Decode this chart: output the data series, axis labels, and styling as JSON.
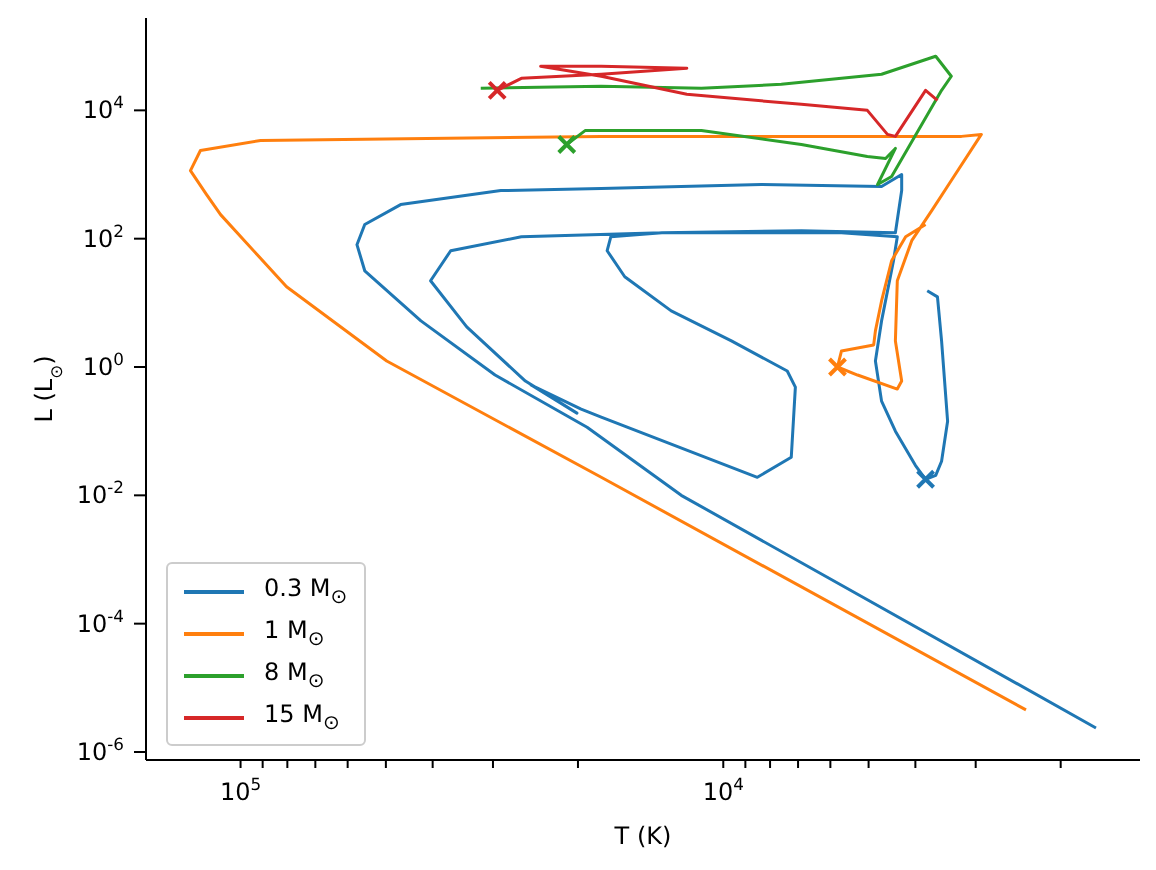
{
  "chart_data": {
    "type": "line",
    "xlabel": "T (K)",
    "ylabel": "L (L$_{⊙}$)",
    "log": "xy",
    "grid": false,
    "legend": "bottom left",
    "xlim": [
      157000,
      1370
    ],
    "ylim": [
      7.5e-07,
      275000
    ],
    "xticks": [
      {
        "value": 100000,
        "label": "10$^{5}$"
      },
      {
        "value": 10000,
        "label": "10$^{4}$"
      },
      {
        "value": 2000,
        "label": null
      },
      {
        "value": 3000,
        "label": null
      },
      {
        "value": 4000,
        "label": null
      },
      {
        "value": 5000,
        "label": null
      },
      {
        "value": 6000,
        "label": null
      },
      {
        "value": 7000,
        "label": null
      },
      {
        "value": 8000,
        "label": null
      },
      {
        "value": 9000,
        "label": null
      },
      {
        "value": 20000,
        "label": null
      },
      {
        "value": 30000,
        "label": null
      },
      {
        "value": 40000,
        "label": null
      },
      {
        "value": 50000,
        "label": null
      },
      {
        "value": 60000,
        "label": null
      },
      {
        "value": 70000,
        "label": null
      },
      {
        "value": 80000,
        "label": null
      },
      {
        "value": 90000,
        "label": null
      }
    ],
    "yticks": [
      {
        "value": 1e-06,
        "label": "10$^{-6}$"
      },
      {
        "value": 0.0001,
        "label": "10$^{-4}$"
      },
      {
        "value": 0.01,
        "label": "10$^{-2}$"
      },
      {
        "value": 1,
        "label": "10$^{0}$"
      },
      {
        "value": 100,
        "label": "10$^{2}$"
      },
      {
        "value": 10000,
        "label": "10$^{4}$"
      }
    ],
    "series": [
      {
        "name": "0.3 M$_{⊙}$",
        "color": "#1f77b4",
        "x": [
          3780,
          3600,
          3530,
          3430,
          3530,
          3630,
          3810,
          4000,
          4400,
          4700,
          4840,
          4700,
          4440,
          4360,
          5690,
          8340,
          13400,
          17100,
          17400,
          16000,
          12820,
          9620,
          7370,
          7090,
          7230,
          8500,
          17900,
          19700,
          25000,
          20100,
          25700,
          34000,
          40400,
          36700,
          26200,
          13400,
          6890,
          4400,
          4270,
          4270,
          4700,
          8340,
          17900,
          28900,
          46600,
          55300,
          57400,
          55300,
          42300,
          29700,
          19150,
          12220,
          1690
        ],
        "values": [
          15.4,
          12.4,
          2.55,
          0.143,
          0.034,
          0.0205,
          0.0178,
          0.0294,
          0.1,
          0.294,
          1.24,
          5.23,
          45.3,
          107,
          124,
          124,
          124,
          107,
          64.9,
          25.5,
          7.5,
          2.55,
          0.866,
          0.487,
          0.0392,
          0.0191,
          0.166,
          0.221,
          0.523,
          0.191,
          0.604,
          4.22,
          22.1,
          64.9,
          107,
          124,
          133,
          124,
          562,
          1000,
          649,
          698,
          604,
          562,
          340,
          166,
          80.6,
          31.6,
          5.23,
          0.75,
          0.115,
          0.01,
          2.37e-06
        ]
      },
      {
        "name": "1 M$_{⊙}$",
        "color": "#ff7f0e",
        "x": [
          3810,
          4190,
          4480,
          4700,
          4840,
          4880,
          5690,
          5800,
          5270,
          4360,
          4270,
          4400,
          4360,
          4070,
          3700,
          3370,
          2920,
          3210,
          17900,
          90900,
          121100,
          127000,
          117600,
          110000,
          80300,
          49800,
          17900,
          2360
        ],
        "values": [
          166,
          107,
          45.3,
          10.7,
          3.65,
          2.21,
          1.78,
          1,
          0.75,
          0.453,
          0.604,
          2.55,
          22.1,
          93,
          274,
          806,
          4220,
          3930,
          3930,
          3400,
          2370,
          1150,
          487,
          237,
          17.8,
          1.24,
          0.0191,
          4.53e-06
        ]
      },
      {
        "name": "8 M$_{⊙}$",
        "color": "#2ca02c",
        "x": [
          21100,
          19300,
          11100,
          6890,
          5030,
          4610,
          4400,
          4790,
          4480,
          3530,
          3370,
          3630,
          4700,
          7580,
          11100,
          17900,
          31800
        ],
        "values": [
          2940,
          4870,
          4870,
          2940,
          1910,
          1780,
          2550,
          698,
          931,
          20500,
          34000,
          69800,
          36500,
          25500,
          22100,
          23700,
          22100
        ]
      },
      {
        "name": "15 M$_{⊙}$",
        "color": "#d62728",
        "x": [
          29400,
          26200,
          17900,
          11900,
          17900,
          23900,
          17900,
          11900,
          6890,
          5030,
          4570,
          4400,
          3810,
          3600
        ],
        "values": [
          20500,
          31600,
          36500,
          45300,
          48700,
          48700,
          34000,
          17800,
          12400,
          10000,
          4220,
          3930,
          20500,
          14300
        ]
      },
      {
        "type": "scatter",
        "marker": "cross",
        "color": "#1f77b4",
        "x": [
          3810
        ],
        "values": [
          0.0178
        ]
      },
      {
        "type": "scatter",
        "marker": "cross",
        "color": "#ff7f0e",
        "x": [
          5800
        ],
        "values": [
          1
        ]
      },
      {
        "type": "scatter",
        "marker": "cross",
        "color": "#2ca02c",
        "x": [
          21100
        ],
        "values": [
          2940
        ]
      },
      {
        "type": "scatter",
        "marker": "cross",
        "color": "#d62728",
        "x": [
          29400
        ],
        "values": [
          20500
        ]
      }
    ]
  }
}
